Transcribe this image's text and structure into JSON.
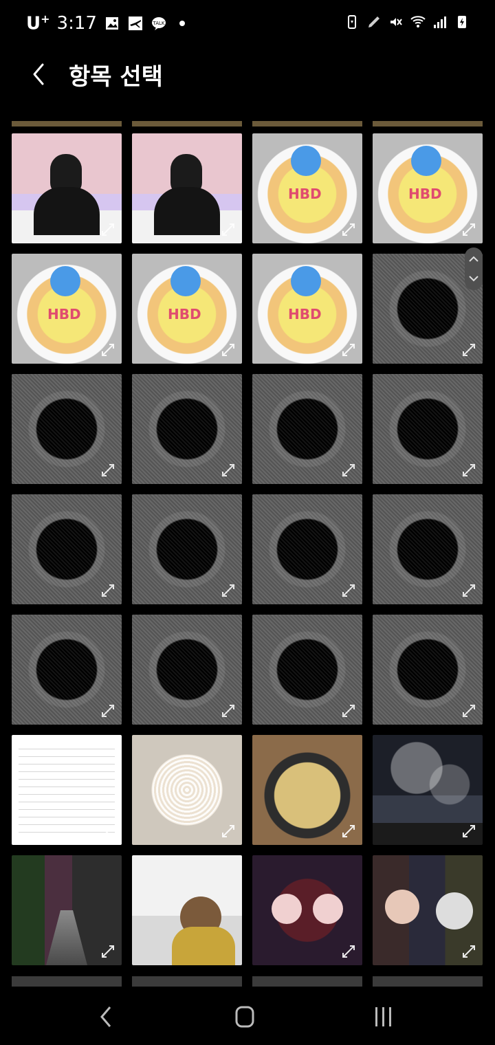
{
  "status_bar": {
    "carrier": "U",
    "carrier_plus": "+",
    "time": "3:17",
    "left_icons": [
      "gallery-icon",
      "airplane-icon",
      "talk-icon",
      "dot-icon"
    ],
    "talk_label": "TALK",
    "right_icons": [
      "battery-saver-icon",
      "pen-icon",
      "mute-icon",
      "wifi-icon",
      "signal-icon",
      "battery-charging-icon"
    ]
  },
  "header": {
    "title": "항목 선택"
  },
  "grid": {
    "rows": [
      [
        "person",
        "person",
        "cake",
        "cake"
      ],
      [
        "cake",
        "cake",
        "cake",
        "hole"
      ],
      [
        "hole",
        "hole",
        "hole",
        "hole"
      ],
      [
        "hole",
        "hole",
        "hole",
        "hole"
      ],
      [
        "hole",
        "hole",
        "hole",
        "hole"
      ],
      [
        "doc",
        "noodle",
        "pancake",
        "night"
      ],
      [
        "street",
        "yellowrobe",
        "couple",
        "group"
      ]
    ]
  },
  "nav": {
    "back": "back-icon",
    "home": "home-icon",
    "recents": "recents-icon"
  }
}
